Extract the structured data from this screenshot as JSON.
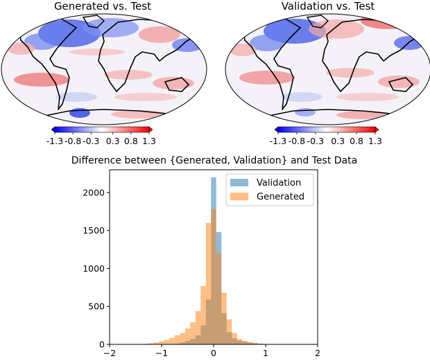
{
  "chart_data": [
    {
      "type": "heatmap",
      "title": "Generated vs. Test",
      "colorbar": {
        "ticks": [
          "-1.3",
          "-0.8",
          "-0.3",
          "0.3",
          "0.8",
          "1.3"
        ],
        "range": [
          -1.3,
          1.3
        ],
        "colors": [
          "#0000ff",
          "#ffffff",
          "#ff0000"
        ]
      }
    },
    {
      "type": "heatmap",
      "title": "Validation vs. Test",
      "colorbar": {
        "ticks": [
          "-1.3",
          "-0.8",
          "-0.3",
          "0.3",
          "0.8",
          "1.3"
        ],
        "range": [
          -1.3,
          1.3
        ],
        "colors": [
          "#0000ff",
          "#ffffff",
          "#ff0000"
        ]
      }
    },
    {
      "type": "bar",
      "title": "Difference between {Generated, Validation} and Test Data",
      "xlim": [
        -2,
        2
      ],
      "ylim": [
        0,
        2300
      ],
      "xticks": [
        -2,
        -1,
        0,
        1,
        2
      ],
      "yticks": [
        0,
        500,
        1000,
        1500,
        2000
      ],
      "legend": "top-right",
      "bin_width": 0.1,
      "series": [
        {
          "name": "Validation",
          "color": "#1f77b4",
          "bins": [
            {
              "x": -0.7,
              "value": 10
            },
            {
              "x": -0.6,
              "value": 25
            },
            {
              "x": -0.5,
              "value": 45
            },
            {
              "x": -0.4,
              "value": 70
            },
            {
              "x": -0.3,
              "value": 120
            },
            {
              "x": -0.2,
              "value": 250
            },
            {
              "x": -0.1,
              "value": 590
            },
            {
              "x": 0.0,
              "value": 2200
            },
            {
              "x": 0.1,
              "value": 1480
            },
            {
              "x": 0.2,
              "value": 410
            },
            {
              "x": 0.3,
              "value": 160
            },
            {
              "x": 0.4,
              "value": 80
            },
            {
              "x": 0.5,
              "value": 50
            },
            {
              "x": 0.6,
              "value": 35
            },
            {
              "x": 0.7,
              "value": 22
            },
            {
              "x": 0.8,
              "value": 14
            },
            {
              "x": 0.9,
              "value": 8
            },
            {
              "x": 1.0,
              "value": 4
            }
          ]
        },
        {
          "name": "Generated",
          "color": "#ff7f0e",
          "bins": [
            {
              "x": -1.3,
              "value": 8
            },
            {
              "x": -1.2,
              "value": 15
            },
            {
              "x": -1.1,
              "value": 25
            },
            {
              "x": -1.0,
              "value": 40
            },
            {
              "x": -0.9,
              "value": 60
            },
            {
              "x": -0.8,
              "value": 85
            },
            {
              "x": -0.7,
              "value": 120
            },
            {
              "x": -0.6,
              "value": 150
            },
            {
              "x": -0.5,
              "value": 210
            },
            {
              "x": -0.4,
              "value": 290
            },
            {
              "x": -0.3,
              "value": 440
            },
            {
              "x": -0.2,
              "value": 770
            },
            {
              "x": -0.1,
              "value": 1600
            },
            {
              "x": 0.0,
              "value": 1780
            },
            {
              "x": 0.1,
              "value": 1200
            },
            {
              "x": 0.2,
              "value": 680
            },
            {
              "x": 0.3,
              "value": 330
            },
            {
              "x": 0.4,
              "value": 150
            },
            {
              "x": 0.5,
              "value": 70
            },
            {
              "x": 0.6,
              "value": 45
            },
            {
              "x": 0.7,
              "value": 30
            },
            {
              "x": 0.8,
              "value": 20
            },
            {
              "x": 0.9,
              "value": 12
            },
            {
              "x": 1.0,
              "value": 7
            },
            {
              "x": 1.1,
              "value": 4
            }
          ]
        }
      ]
    }
  ]
}
